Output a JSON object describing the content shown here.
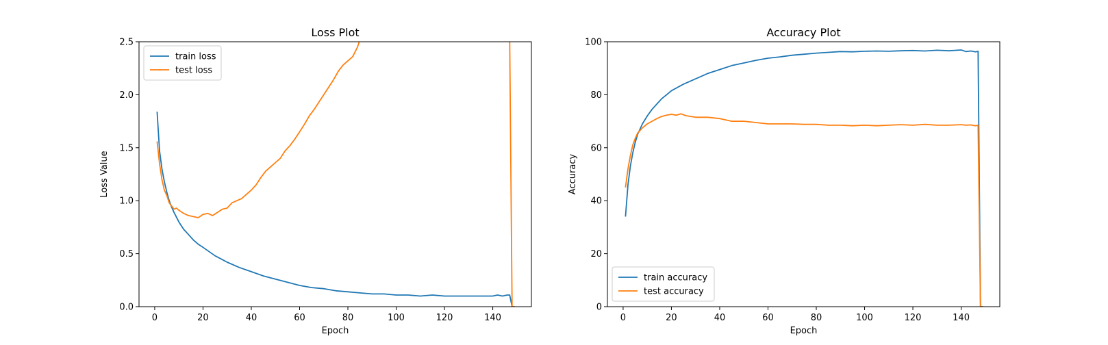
{
  "figure": {
    "background": "#ffffff"
  },
  "chart_data": [
    {
      "type": "line",
      "title": "Loss Plot",
      "xlabel": "Epoch",
      "ylabel": "Loss Value",
      "xlim": [
        -6.5,
        156
      ],
      "ylim": [
        0,
        2.5
      ],
      "xticks": [
        0,
        20,
        40,
        60,
        80,
        100,
        120,
        140
      ],
      "yticks": [
        0.0,
        0.5,
        1.0,
        1.5,
        2.0,
        2.5
      ],
      "ytick_labels": [
        "0.0",
        "0.5",
        "1.0",
        "1.5",
        "2.0",
        "2.5"
      ],
      "grid": false,
      "legend": "top-left",
      "series": [
        {
          "name": "train loss",
          "color": "#1f77b4",
          "x": [
            1,
            2,
            3,
            4,
            5,
            6,
            7,
            8,
            10,
            12,
            14,
            16,
            18,
            20,
            25,
            30,
            35,
            40,
            45,
            50,
            55,
            60,
            65,
            70,
            75,
            80,
            85,
            90,
            95,
            100,
            105,
            110,
            115,
            120,
            125,
            130,
            135,
            140,
            142,
            144,
            146,
            147,
            148,
            149
          ],
          "y": [
            1.84,
            1.47,
            1.3,
            1.18,
            1.08,
            1.0,
            0.94,
            0.89,
            0.8,
            0.73,
            0.68,
            0.63,
            0.59,
            0.56,
            0.48,
            0.42,
            0.37,
            0.33,
            0.29,
            0.26,
            0.23,
            0.2,
            0.18,
            0.17,
            0.15,
            0.14,
            0.13,
            0.12,
            0.12,
            0.11,
            0.11,
            0.1,
            0.11,
            0.1,
            0.1,
            0.1,
            0.1,
            0.1,
            0.11,
            0.1,
            0.11,
            0.11,
            0.0,
            0.0
          ]
        },
        {
          "name": "test loss",
          "color": "#ff7f0e",
          "x": [
            1,
            2,
            3,
            4,
            5,
            6,
            7,
            8,
            9,
            10,
            12,
            14,
            16,
            18,
            20,
            22,
            24,
            26,
            28,
            30,
            32,
            34,
            36,
            38,
            40,
            42,
            44,
            46,
            48,
            50,
            52,
            54,
            56,
            58,
            60,
            62,
            64,
            66,
            68,
            70,
            72,
            74,
            76,
            78,
            80,
            82,
            84,
            85,
            147,
            148,
            149
          ],
          "y": [
            1.56,
            1.35,
            1.2,
            1.1,
            1.05,
            0.98,
            0.95,
            0.92,
            0.93,
            0.91,
            0.88,
            0.86,
            0.85,
            0.84,
            0.87,
            0.88,
            0.86,
            0.89,
            0.92,
            0.93,
            0.98,
            1.0,
            1.02,
            1.06,
            1.1,
            1.15,
            1.22,
            1.28,
            1.32,
            1.36,
            1.4,
            1.47,
            1.52,
            1.58,
            1.65,
            1.72,
            1.8,
            1.86,
            1.93,
            2.0,
            2.07,
            2.14,
            2.22,
            2.28,
            2.32,
            2.36,
            2.45,
            2.52,
            2.52,
            0.0,
            0.0
          ]
        }
      ]
    },
    {
      "type": "line",
      "title": "Accuracy Plot",
      "xlabel": "Epoch",
      "ylabel": "Accuracy",
      "xlim": [
        -6.5,
        156
      ],
      "ylim": [
        0,
        100
      ],
      "xticks": [
        0,
        20,
        40,
        60,
        80,
        100,
        120,
        140
      ],
      "yticks": [
        0,
        20,
        40,
        60,
        80,
        100
      ],
      "ytick_labels": [
        "0",
        "20",
        "40",
        "60",
        "80",
        "100"
      ],
      "grid": false,
      "legend": "bottom-left",
      "series": [
        {
          "name": "train accuracy",
          "color": "#1f77b4",
          "x": [
            1,
            2,
            3,
            4,
            5,
            6,
            8,
            10,
            12,
            14,
            16,
            18,
            20,
            25,
            30,
            35,
            40,
            45,
            50,
            55,
            60,
            65,
            70,
            75,
            80,
            85,
            90,
            95,
            100,
            105,
            110,
            115,
            120,
            125,
            130,
            135,
            140,
            142,
            144,
            146,
            147,
            148,
            149
          ],
          "y": [
            34,
            46,
            53,
            58,
            62,
            65,
            69,
            72,
            74.5,
            76.5,
            78.5,
            80,
            81.5,
            84,
            86,
            88,
            89.5,
            91,
            92,
            93,
            93.8,
            94.3,
            94.9,
            95.3,
            95.7,
            96,
            96.3,
            96.2,
            96.4,
            96.5,
            96.4,
            96.6,
            96.7,
            96.5,
            96.8,
            96.6,
            96.9,
            96.3,
            96.5,
            96.2,
            96.4,
            0,
            0
          ]
        },
        {
          "name": "test accuracy",
          "color": "#ff7f0e",
          "x": [
            1,
            2,
            3,
            4,
            5,
            6,
            8,
            10,
            12,
            14,
            16,
            18,
            20,
            22,
            24,
            26,
            28,
            30,
            35,
            40,
            45,
            50,
            55,
            60,
            65,
            70,
            75,
            80,
            85,
            90,
            95,
            100,
            105,
            110,
            115,
            120,
            125,
            130,
            135,
            140,
            142,
            144,
            146,
            147,
            148,
            149
          ],
          "y": [
            45,
            52,
            57,
            61,
            63.5,
            65.5,
            67.5,
            69,
            70,
            71,
            71.8,
            72.3,
            72.6,
            72.3,
            72.8,
            72.1,
            71.8,
            71.5,
            71.5,
            71,
            70,
            70,
            69.5,
            69,
            69,
            69,
            68.8,
            68.8,
            68.5,
            68.5,
            68.3,
            68.5,
            68.3,
            68.5,
            68.7,
            68.5,
            68.8,
            68.5,
            68.5,
            68.7,
            68.5,
            68.6,
            68.3,
            68.5,
            0,
            0
          ]
        }
      ]
    }
  ]
}
